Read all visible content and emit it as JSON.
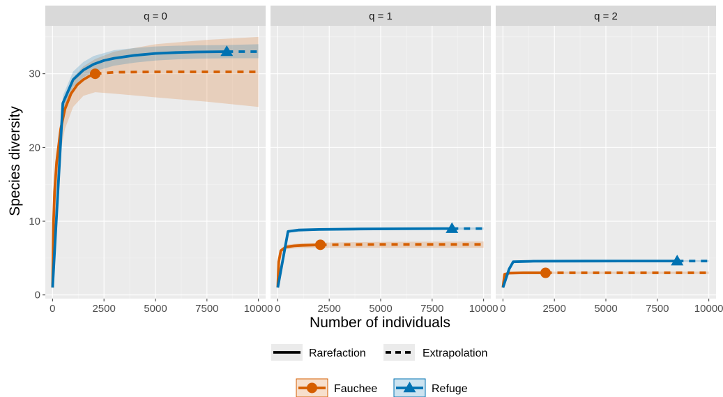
{
  "chart_data": {
    "type": "line",
    "xlabel": "Number of individuals",
    "ylabel": "Species diversity",
    "xlim": [
      -350,
      10350
    ],
    "ylim": [
      -0.5,
      36.5
    ],
    "x_ticks": [
      0,
      2500,
      5000,
      7500,
      10000
    ],
    "x_tick_labels": [
      "0",
      "2500",
      "5000",
      "7500",
      "10000"
    ],
    "y_ticks": [
      0,
      10,
      20,
      30
    ],
    "y_tick_labels": [
      "0",
      "10",
      "20",
      "30"
    ],
    "grid": true,
    "colors": {
      "Fauchee": "#d55e00",
      "Refuge": "#0072b2"
    },
    "legend": {
      "position": "bottom",
      "linetype_title": "",
      "linetypes": [
        {
          "label": "Rarefaction",
          "style": "solid"
        },
        {
          "label": "Extrapolation",
          "style": "dashed"
        }
      ],
      "series_title": "",
      "series": [
        {
          "label": "Fauchee",
          "color": "#d55e00",
          "shape": "circle"
        },
        {
          "label": "Refuge",
          "color": "#0072b2",
          "shape": "triangle"
        }
      ]
    },
    "panels": [
      {
        "label": "q = 0",
        "series": [
          {
            "name": "Fauchee",
            "color": "#d55e00",
            "shape": "circle",
            "observed": [
              2071,
              30.0
            ],
            "rarefaction": [
              [
                1,
                1
              ],
              [
                50,
                10
              ],
              [
                100,
                14
              ],
              [
                200,
                18
              ],
              [
                400,
                22.5
              ],
              [
                600,
                25.2
              ],
              [
                900,
                27.3
              ],
              [
                1200,
                28.5
              ],
              [
                1500,
                29.2
              ],
              [
                1800,
                29.7
              ],
              [
                2071,
                30.0
              ]
            ],
            "extrapolation": [
              [
                2071,
                30.0
              ],
              [
                3000,
                30.2
              ],
              [
                5000,
                30.25
              ],
              [
                7500,
                30.25
              ],
              [
                10000,
                30.25
              ]
            ],
            "ci_lower": [
              [
                1,
                1
              ],
              [
                100,
                12
              ],
              [
                300,
                18
              ],
              [
                600,
                22.5
              ],
              [
                1000,
                25.5
              ],
              [
                1500,
                27.0
              ],
              [
                2071,
                27.5
              ],
              [
                3000,
                27.3
              ],
              [
                5000,
                26.8
              ],
              [
                7500,
                26.2
              ],
              [
                10000,
                25.5
              ]
            ],
            "ci_upper": [
              [
                1,
                1
              ],
              [
                100,
                16
              ],
              [
                300,
                22
              ],
              [
                600,
                27
              ],
              [
                1000,
                29.5
              ],
              [
                1500,
                31.0
              ],
              [
                2071,
                32.0
              ],
              [
                3000,
                33.0
              ],
              [
                5000,
                34.0
              ],
              [
                7500,
                34.6
              ],
              [
                10000,
                35.0
              ]
            ]
          },
          {
            "name": "Refuge",
            "color": "#0072b2",
            "shape": "triangle",
            "observed": [
              8463,
              33.0
            ],
            "rarefaction": [
              [
                1,
                1
              ],
              [
                500,
                26
              ],
              [
                1000,
                29.2
              ],
              [
                1500,
                30.5
              ],
              [
                2000,
                31.3
              ],
              [
                2500,
                31.8
              ],
              [
                3000,
                32.1
              ],
              [
                4000,
                32.5
              ],
              [
                5000,
                32.75
              ],
              [
                6000,
                32.88
              ],
              [
                7000,
                32.95
              ],
              [
                8463,
                33.0
              ]
            ],
            "extrapolation": [
              [
                8463,
                33.0
              ],
              [
                9000,
                33.0
              ],
              [
                10000,
                33.0
              ]
            ],
            "ci_lower": [
              [
                1,
                1
              ],
              [
                500,
                25
              ],
              [
                1000,
                28.2
              ],
              [
                1500,
                29.5
              ],
              [
                2000,
                30.3
              ],
              [
                3000,
                31.1
              ],
              [
                4000,
                31.5
              ],
              [
                5000,
                31.8
              ],
              [
                6000,
                31.95
              ],
              [
                7000,
                32.05
              ],
              [
                8463,
                32.1
              ],
              [
                10000,
                32.1
              ]
            ],
            "ci_upper": [
              [
                1,
                1
              ],
              [
                500,
                27
              ],
              [
                1000,
                30.3
              ],
              [
                1500,
                31.6
              ],
              [
                2000,
                32.4
              ],
              [
                3000,
                33.2
              ],
              [
                4000,
                33.5
              ],
              [
                5000,
                33.7
              ],
              [
                6000,
                33.8
              ],
              [
                7000,
                33.85
              ],
              [
                8463,
                33.9
              ],
              [
                10000,
                34.0
              ]
            ]
          }
        ]
      },
      {
        "label": "q = 1",
        "series": [
          {
            "name": "Fauchee",
            "color": "#d55e00",
            "shape": "circle",
            "observed": [
              2071,
              6.8
            ],
            "rarefaction": [
              [
                1,
                1
              ],
              [
                50,
                4.5
              ],
              [
                150,
                6.0
              ],
              [
                400,
                6.5
              ],
              [
                800,
                6.65
              ],
              [
                1200,
                6.72
              ],
              [
                2071,
                6.8
              ]
            ],
            "extrapolation": [
              [
                2071,
                6.8
              ],
              [
                3000,
                6.82
              ],
              [
                5000,
                6.85
              ],
              [
                10000,
                6.85
              ]
            ],
            "ci_lower": [
              [
                1,
                1
              ],
              [
                150,
                5.7
              ],
              [
                400,
                6.2
              ],
              [
                1000,
                6.35
              ],
              [
                2071,
                6.4
              ],
              [
                5000,
                6.4
              ],
              [
                10000,
                6.4
              ]
            ],
            "ci_upper": [
              [
                1,
                1
              ],
              [
                150,
                6.3
              ],
              [
                400,
                6.8
              ],
              [
                1000,
                7.0
              ],
              [
                2071,
                7.1
              ],
              [
                5000,
                7.2
              ],
              [
                10000,
                7.25
              ]
            ]
          },
          {
            "name": "Refuge",
            "color": "#0072b2",
            "shape": "triangle",
            "observed": [
              8463,
              9.0
            ],
            "rarefaction": [
              [
                1,
                1
              ],
              [
                500,
                8.6
              ],
              [
                1000,
                8.8
              ],
              [
                2000,
                8.88
              ],
              [
                4000,
                8.94
              ],
              [
                6000,
                8.97
              ],
              [
                8463,
                9.0
              ]
            ],
            "extrapolation": [
              [
                8463,
                9.0
              ],
              [
                10000,
                9.0
              ]
            ],
            "ci_lower": [
              [
                1,
                1
              ],
              [
                500,
                8.45
              ],
              [
                2000,
                8.75
              ],
              [
                8463,
                8.85
              ],
              [
                10000,
                8.85
              ]
            ],
            "ci_upper": [
              [
                1,
                1
              ],
              [
                500,
                8.75
              ],
              [
                2000,
                9.0
              ],
              [
                8463,
                9.15
              ],
              [
                10000,
                9.15
              ]
            ]
          }
        ]
      },
      {
        "label": "q = 2",
        "series": [
          {
            "name": "Fauchee",
            "color": "#d55e00",
            "shape": "circle",
            "observed": [
              2071,
              3.0
            ],
            "rarefaction": [
              [
                1,
                1
              ],
              [
                80,
                2.8
              ],
              [
                300,
                2.95
              ],
              [
                1000,
                3.0
              ],
              [
                2071,
                3.0
              ]
            ],
            "extrapolation": [
              [
                2071,
                3.0
              ],
              [
                10000,
                3.0
              ]
            ],
            "ci_lower": [
              [
                1,
                1
              ],
              [
                300,
                2.8
              ],
              [
                2071,
                2.85
              ],
              [
                10000,
                2.85
              ]
            ],
            "ci_upper": [
              [
                1,
                1
              ],
              [
                300,
                3.1
              ],
              [
                2071,
                3.15
              ],
              [
                10000,
                3.15
              ]
            ]
          },
          {
            "name": "Refuge",
            "color": "#0072b2",
            "shape": "triangle",
            "observed": [
              8463,
              4.6
            ],
            "rarefaction": [
              [
                1,
                1
              ],
              [
                300,
                3.5
              ],
              [
                500,
                4.5
              ],
              [
                1500,
                4.57
              ],
              [
                4000,
                4.59
              ],
              [
                8463,
                4.6
              ]
            ],
            "extrapolation": [
              [
                8463,
                4.6
              ],
              [
                10000,
                4.6
              ]
            ],
            "ci_lower": [
              [
                1,
                1
              ],
              [
                500,
                4.45
              ],
              [
                8463,
                4.5
              ],
              [
                10000,
                4.5
              ]
            ],
            "ci_upper": [
              [
                1,
                1
              ],
              [
                500,
                4.6
              ],
              [
                8463,
                4.7
              ],
              [
                10000,
                4.7
              ]
            ]
          }
        ]
      }
    ]
  }
}
